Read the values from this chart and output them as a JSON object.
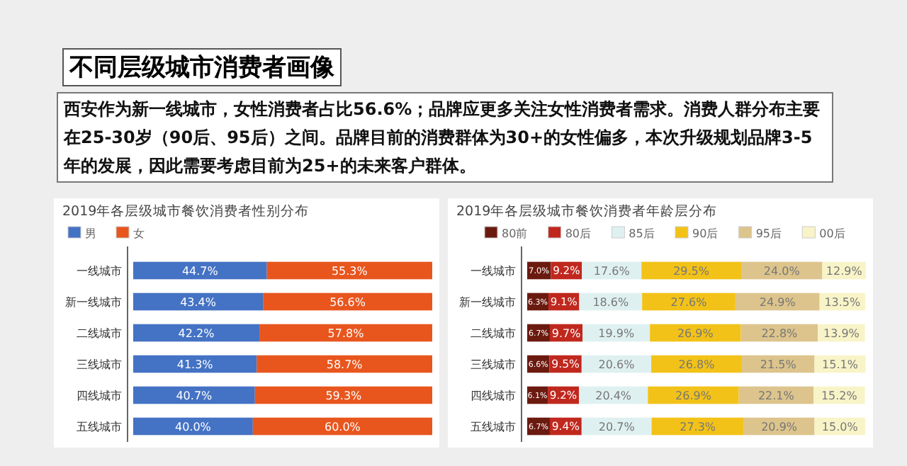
{
  "chart_data": [
    {
      "type": "other",
      "title": "不同层级城市消费者画像",
      "annotations": [
        "西安作为新一线城市，女性消费者占比56.6%；品牌应更多关注女性消费者需求。消费人群分布主要在25-30岁（90后、95后）之间。品牌目前的消费群体为30+的女性偏多，本次升级规划品牌3-5年的发展，因此需要考虑目前为25+的未来客户群体。"
      ]
    },
    {
      "type": "bar",
      "orientation": "horizontal",
      "stacked": true,
      "legend": "top left",
      "title": "2019年各层级城市餐饮消费者性别分布",
      "categories": [
        "一线城市",
        "新一线城市",
        "二线城市",
        "三线城市",
        "四线城市",
        "五线城市"
      ],
      "series": [
        {
          "name": "男",
          "color": "#4472c4",
          "values": [
            44.7,
            43.4,
            42.2,
            41.3,
            40.7,
            40.0
          ],
          "value_labels": [
            "44.7%",
            "43.4%",
            "42.2%",
            "41.3%",
            "40.7%",
            "40.0%"
          ]
        },
        {
          "name": "女",
          "color": "#e8561e",
          "values": [
            55.3,
            56.6,
            57.8,
            58.7,
            59.3,
            60.0
          ],
          "value_labels": [
            "55.3%",
            "56.6%",
            "57.8%",
            "58.7%",
            "59.3%",
            "60.0%"
          ]
        }
      ]
    },
    {
      "type": "bar",
      "orientation": "horizontal",
      "stacked": true,
      "legend": "top",
      "title": "2019年各层级城市餐饮消费者年龄层分布",
      "categories": [
        "一线城市",
        "新一线城市",
        "二线城市",
        "三线城市",
        "四线城市",
        "五线城市"
      ],
      "series": [
        {
          "name": "80前",
          "color": "#6b1a10",
          "values": [
            7.0,
            6.3,
            6.7,
            6.6,
            6.1,
            6.7
          ],
          "value_labels": [
            "7.0%",
            "6.3%",
            "6.7%",
            "6.6%",
            "6.1%",
            "6.7%"
          ]
        },
        {
          "name": "80后",
          "color": "#c0281e",
          "values": [
            9.2,
            9.1,
            9.7,
            9.5,
            9.2,
            9.4
          ],
          "value_labels": [
            "9.2%",
            "9.1%",
            "9.7%",
            "9.5%",
            "9.2%",
            "9.4%"
          ]
        },
        {
          "name": "85后",
          "color": "#dff0f0",
          "values": [
            17.6,
            18.6,
            19.9,
            20.6,
            20.4,
            20.7
          ],
          "value_labels": [
            "17.6%",
            "18.6%",
            "19.9%",
            "20.6%",
            "20.4%",
            "20.7%"
          ]
        },
        {
          "name": "90后",
          "color": "#f2c218",
          "values": [
            29.5,
            27.6,
            26.9,
            26.8,
            26.9,
            27.3
          ],
          "value_labels": [
            "29.5%",
            "27.6%",
            "26.9%",
            "26.8%",
            "26.9%",
            "27.3%"
          ]
        },
        {
          "name": "95后",
          "color": "#dcc48c",
          "values": [
            24.0,
            24.9,
            22.8,
            21.5,
            22.1,
            20.9
          ],
          "value_labels": [
            "24.0%",
            "24.9%",
            "22.8%",
            "21.5%",
            "22.1%",
            "20.9%"
          ]
        },
        {
          "name": "00后",
          "color": "#f8f4c8",
          "values": [
            12.9,
            13.5,
            13.9,
            15.1,
            15.2,
            15.0
          ],
          "value_labels": [
            "12.9%",
            "13.5%",
            "13.9%",
            "15.1%",
            "15.2%",
            "15.0%"
          ]
        }
      ]
    }
  ]
}
